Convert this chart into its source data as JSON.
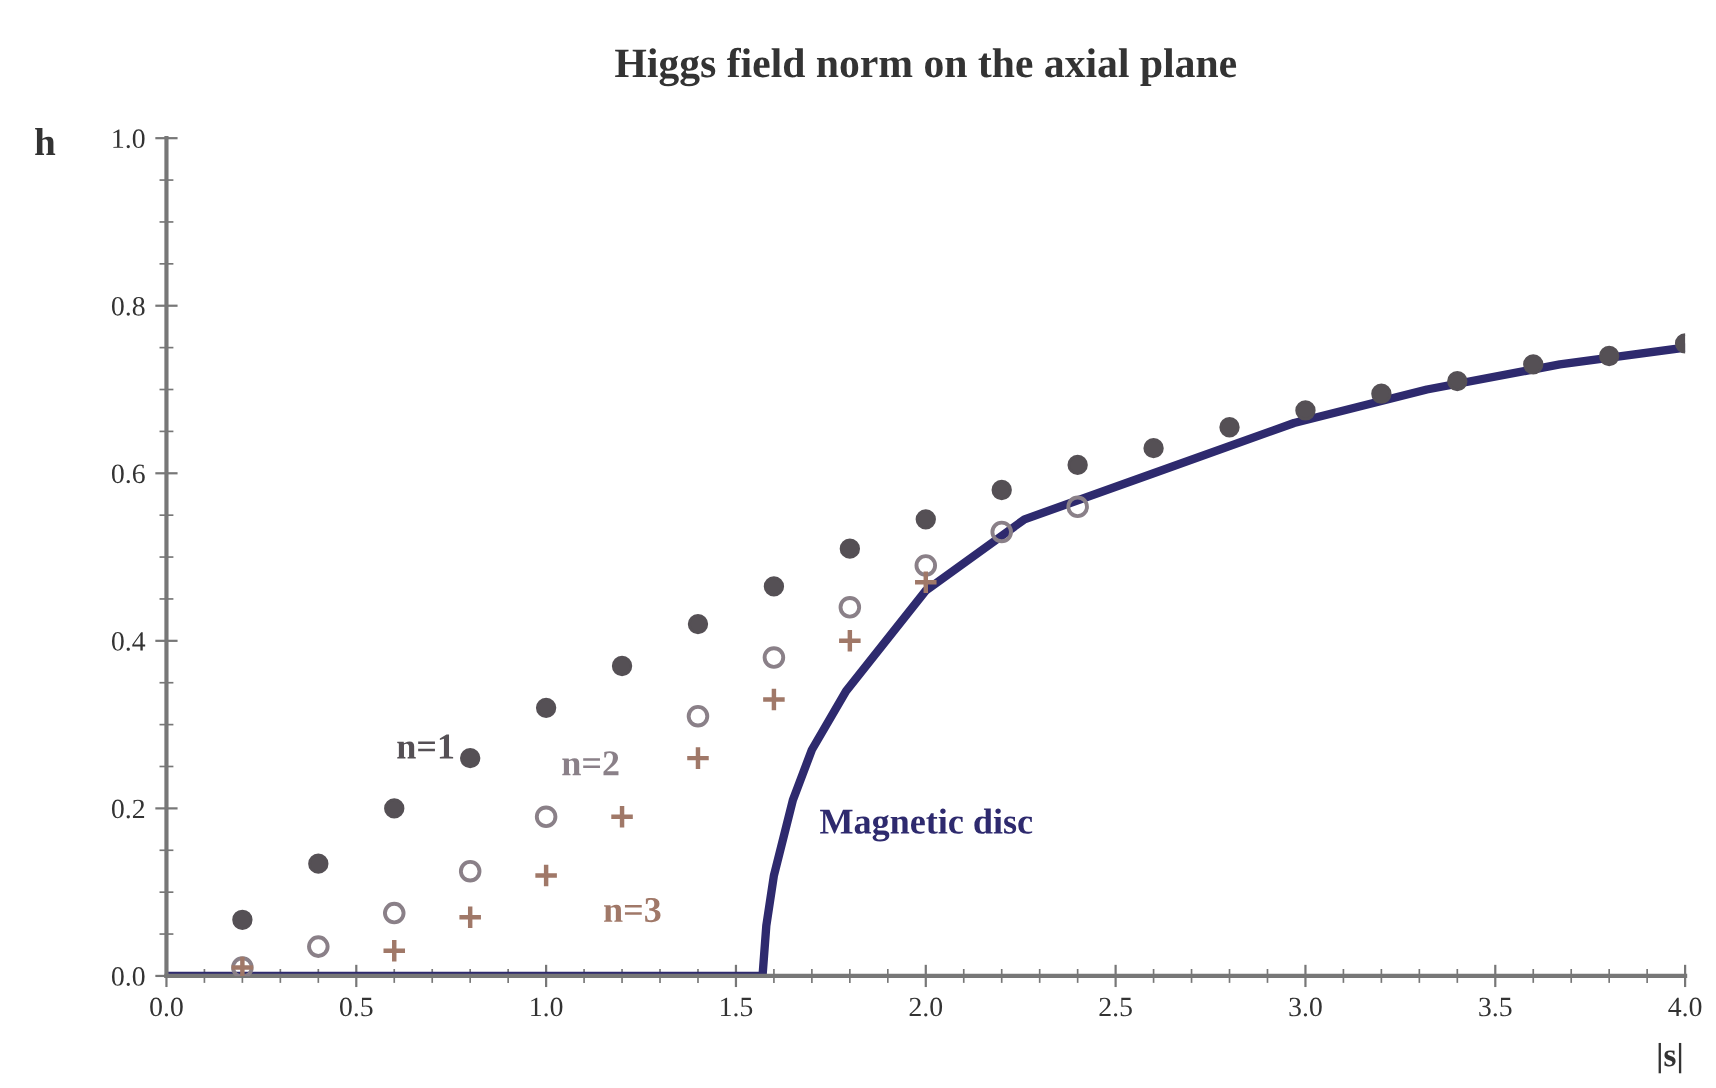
{
  "chart_data": {
    "type": "scatter",
    "title": "Higgs field norm on the axial plane",
    "xlabel": "|s|",
    "ylabel": "h",
    "x": [
      0.2,
      0.4,
      0.6,
      0.8,
      1.0,
      1.2,
      1.4,
      1.6,
      1.8,
      2.0,
      2.2,
      2.4,
      2.6,
      2.8,
      3.0,
      3.2,
      3.4,
      3.6,
      3.8,
      4.0
    ],
    "series": [
      {
        "name": "n=1",
        "color": "#555055",
        "marker": "circle",
        "values": [
          0.067,
          0.134,
          0.2,
          0.26,
          0.32,
          0.37,
          0.42,
          0.465,
          0.51,
          0.545,
          0.58,
          0.61,
          0.63,
          0.655,
          0.675,
          0.695,
          0.71,
          0.73,
          0.74,
          0.755
        ]
      },
      {
        "name": "n=2",
        "color": "#8a8088",
        "marker": "open circle",
        "values": [
          0.01,
          0.035,
          0.075,
          0.125,
          0.19,
          null,
          0.31,
          0.38,
          0.44,
          0.49,
          0.53,
          0.56,
          null,
          null,
          null,
          null,
          null,
          null,
          null,
          null
        ]
      },
      {
        "name": "n=3",
        "color": "#a07868",
        "marker": "cross",
        "values": [
          0.01,
          null,
          0.03,
          0.07,
          0.12,
          0.19,
          0.26,
          0.33,
          0.4,
          0.47,
          null,
          null,
          null,
          null,
          null,
          null,
          null,
          null,
          null,
          null
        ]
      },
      {
        "name": "Magnetic disc",
        "type": "line",
        "color": "#2e2a6e",
        "x": [
          0,
          1.57,
          1.58,
          1.6,
          1.65,
          1.7,
          1.79,
          2.0,
          2.26,
          2.6,
          2.97,
          3.32,
          3.67,
          4.0
        ],
        "values": [
          0,
          0,
          0.06,
          0.12,
          0.21,
          0.27,
          0.34,
          0.46,
          0.545,
          0.6,
          0.66,
          0.7,
          0.73,
          0.75
        ]
      }
    ],
    "xlim": [
      0,
      4.0
    ],
    "ylim": [
      0,
      1.0
    ],
    "xticks": [
      {
        "value": 0,
        "label": "0.0"
      },
      {
        "value": 0.5,
        "label": "0.5"
      },
      {
        "value": 1.0,
        "label": "1.0"
      },
      {
        "value": 1.5,
        "label": "1.5"
      },
      {
        "value": 2.0,
        "label": "2.0"
      },
      {
        "value": 2.5,
        "label": "2.5"
      },
      {
        "value": 3.0,
        "label": "3.0"
      },
      {
        "value": 3.5,
        "label": "3.5"
      },
      {
        "value": 4.0,
        "label": "4.0"
      }
    ],
    "yticks": [
      {
        "value": 0,
        "label": "0.0"
      },
      {
        "value": 0.2,
        "label": "0.2"
      },
      {
        "value": 0.4,
        "label": "0.4"
      },
      {
        "value": 0.6,
        "label": "0.6"
      },
      {
        "value": 0.8,
        "label": "0.8"
      },
      {
        "value": 1.0,
        "label": "1.0"
      }
    ],
    "grid": false,
    "legend": false
  }
}
